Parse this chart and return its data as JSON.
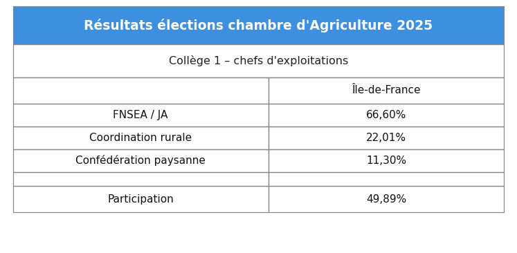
{
  "title": "Résultats élections chambre d'Agriculture 2025",
  "subtitle": "Collège 1 – chefs d'exploitations",
  "header_col": "Île-de-France",
  "rows": [
    [
      "FNSEA / JA",
      "66,60%"
    ],
    [
      "Coordination rurale",
      "22,01%"
    ],
    [
      "Confédération paysanne",
      "11,30%"
    ],
    [
      "",
      ""
    ],
    [
      "Participation",
      "49,89%"
    ]
  ],
  "title_bg": "#3d8fe0",
  "title_color": "#FFFFFF",
  "subtitle_color": "#222222",
  "cell_bg": "#FFFFFF",
  "border_color": "#888888",
  "text_color": "#111111",
  "fig_bg": "#FFFFFF",
  "title_fontsize": 13.5,
  "subtitle_fontsize": 11.5,
  "header_fontsize": 11,
  "cell_fontsize": 11
}
